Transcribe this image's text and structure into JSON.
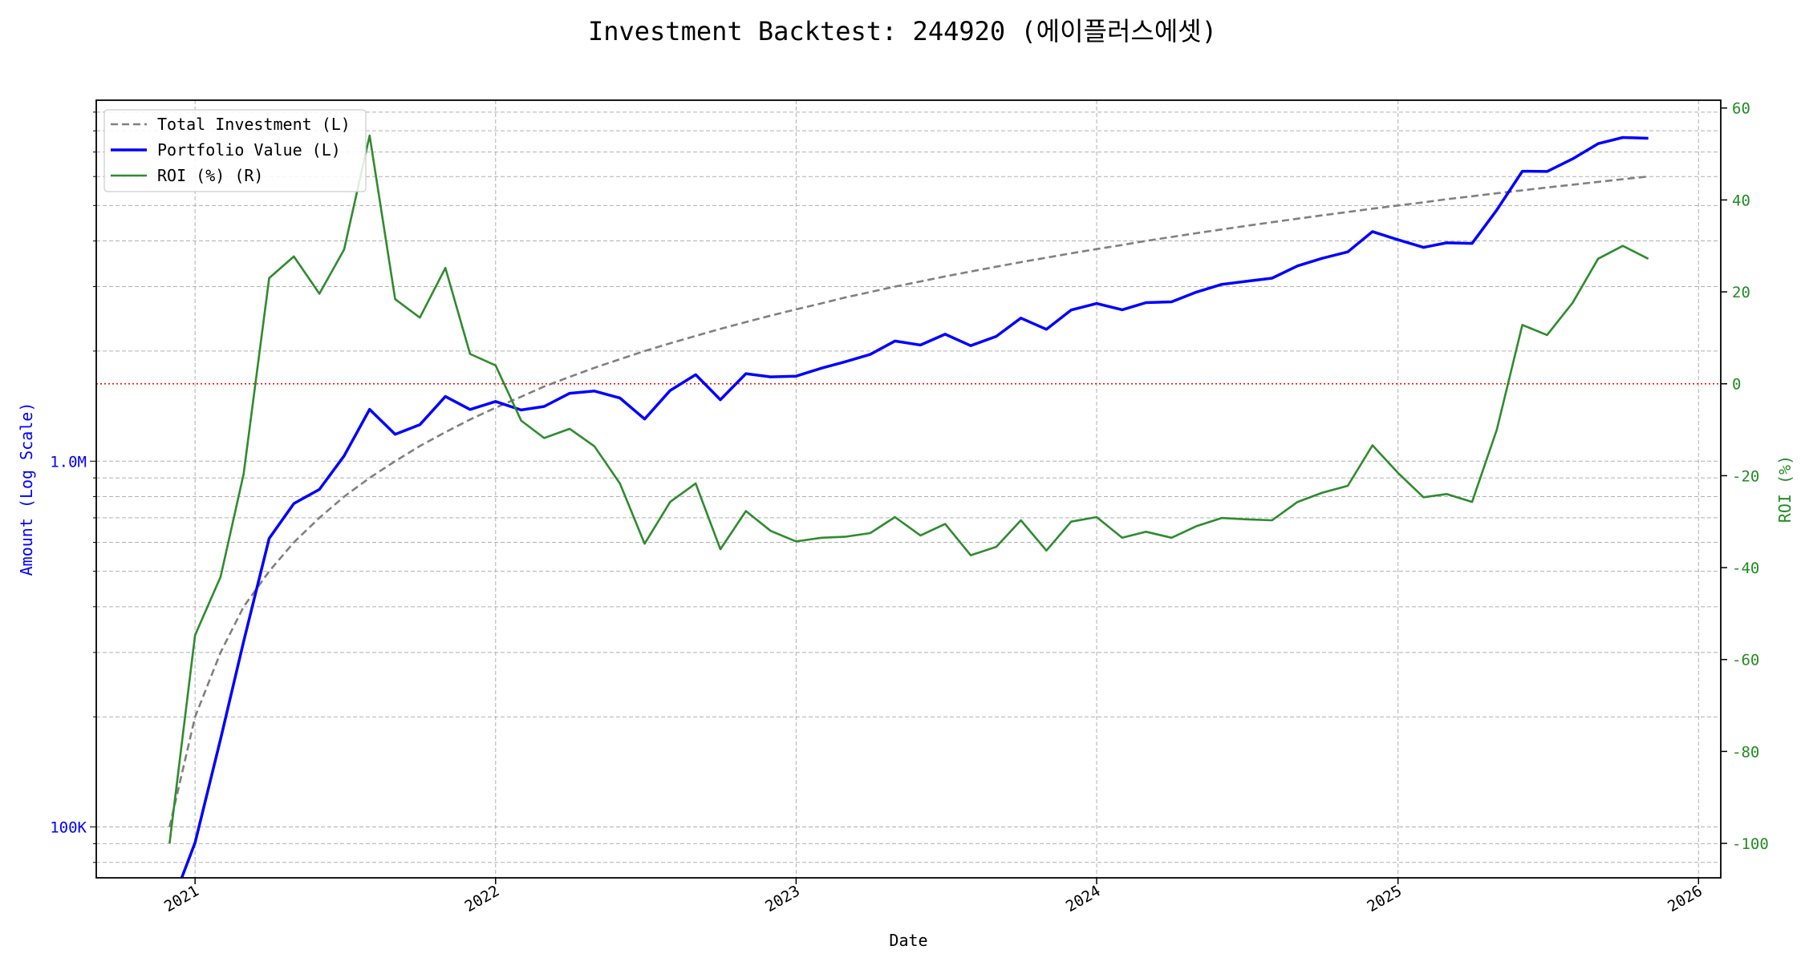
{
  "chart_data": {
    "type": "line",
    "title": "Investment Backtest: 244920 (에이플러스에셋)",
    "xlabel": "Date",
    "ylabel_left": "Amount (Log Scale)",
    "ylabel_right": "ROI (%)",
    "left_scale": "log",
    "ylim_left": [
      72600,
      9700000
    ],
    "ylim_right": [
      -107.5,
      61.7
    ],
    "xlim": [
      "2020-09-03",
      "2026-01-28"
    ],
    "grid": true,
    "legend_placement": "top-left",
    "x_ticks": [
      "2021",
      "2022",
      "2023",
      "2024",
      "2025",
      "2026"
    ],
    "left_ticks": [
      {
        "value": 100000,
        "label": "100K"
      },
      {
        "value": 1000000,
        "label": "1.0M"
      }
    ],
    "right_ticks": [
      -100,
      -80,
      -60,
      -40,
      -20,
      0,
      20,
      40,
      60
    ],
    "reference_line": {
      "axis": "right",
      "value": 0,
      "color": "#ff0000",
      "style": "dotted"
    },
    "colors": {
      "left_axis": "#0000ff",
      "right_axis": "#228b22"
    },
    "x": [
      "2020-12",
      "2021-01",
      "2021-02",
      "2021-03",
      "2021-04",
      "2021-05",
      "2021-06",
      "2021-07",
      "2021-08",
      "2021-09",
      "2021-10",
      "2021-11",
      "2021-12",
      "2022-01",
      "2022-02",
      "2022-03",
      "2022-04",
      "2022-05",
      "2022-06",
      "2022-07",
      "2022-08",
      "2022-09",
      "2022-10",
      "2022-11",
      "2022-12",
      "2023-01",
      "2023-02",
      "2023-03",
      "2023-04",
      "2023-05",
      "2023-06",
      "2023-07",
      "2023-08",
      "2023-09",
      "2023-10",
      "2023-11",
      "2023-12",
      "2024-01",
      "2024-02",
      "2024-03",
      "2024-04",
      "2024-05",
      "2024-06",
      "2024-07",
      "2024-08",
      "2024-09",
      "2024-10",
      "2024-11",
      "2024-12",
      "2025-01",
      "2025-02",
      "2025-03",
      "2025-04",
      "2025-05",
      "2025-06",
      "2025-07",
      "2025-08",
      "2025-09",
      "2025-10",
      "2025-11"
    ],
    "series": [
      {
        "name": "Total Investment (L)",
        "axis": "left",
        "color": "#808080",
        "style": "dashed",
        "values": [
          100000,
          200000,
          300000,
          400000,
          500000,
          600000,
          700000,
          800000,
          900000,
          1000000,
          1100000,
          1200000,
          1300000,
          1400000,
          1500000,
          1600000,
          1700000,
          1800000,
          1900000,
          2000000,
          2100000,
          2200000,
          2300000,
          2400000,
          2500000,
          2600000,
          2700000,
          2800000,
          2900000,
          3000000,
          3100000,
          3200000,
          3300000,
          3400000,
          3500000,
          3600000,
          3700000,
          3800000,
          3900000,
          4000000,
          4100000,
          4200000,
          4300000,
          4400000,
          4500000,
          4600000,
          4700000,
          4800000,
          4900000,
          5000000,
          5100000,
          5200000,
          5300000,
          5400000,
          5500000,
          5600000,
          5700000,
          5800000,
          5900000,
          6000000
        ]
      },
      {
        "name": "Portfolio Value (L)",
        "axis": "left",
        "color": "#0000ff",
        "style": "solid",
        "values": [
          0,
          90600,
          174000,
          321600,
          615000,
          766000,
          837000,
          1033600,
          1386000,
          1184000,
          1258000,
          1502000,
          1384500,
          1456000,
          1380000,
          1411000,
          1533000,
          1555000,
          1488000,
          1304000,
          1560000,
          1723000,
          1472000,
          1735000,
          1700000,
          1708000,
          1796000,
          1868000,
          1958000,
          2130000,
          2077000,
          2224000,
          2069000,
          2193000,
          2461000,
          2293000,
          2590000,
          2698000,
          2594000,
          2712000,
          2727000,
          2898000,
          3044000,
          3102000,
          3164000,
          3418000,
          3586000,
          3734000,
          4243000,
          4030000,
          3840000,
          3952000,
          3938000,
          4860000,
          6204000,
          6194000,
          6703000,
          7378000,
          7670000,
          7632000
        ]
      },
      {
        "name": "ROI (%) (R)",
        "axis": "right",
        "color": "#2e8b2e",
        "style": "solid",
        "values": [
          -100,
          -54.7,
          -42,
          -19.6,
          23,
          27.7,
          19.6,
          29.2,
          54,
          18.4,
          14.4,
          25.2,
          6.5,
          4,
          -8,
          -11.8,
          -9.8,
          -13.6,
          -21.7,
          -34.8,
          -25.7,
          -21.7,
          -36,
          -27.7,
          -32,
          -34.3,
          -33.5,
          -33.3,
          -32.5,
          -29,
          -33,
          -30.5,
          -37.3,
          -35.5,
          -29.7,
          -36.3,
          -30,
          -29,
          -33.5,
          -32.2,
          -33.5,
          -31,
          -29.2,
          -29.5,
          -29.7,
          -25.7,
          -23.7,
          -22.2,
          -13.4,
          -19.4,
          -24.7,
          -24,
          -25.7,
          -10,
          12.8,
          10.6,
          17.6,
          27.2,
          30,
          27.2
        ]
      }
    ]
  }
}
